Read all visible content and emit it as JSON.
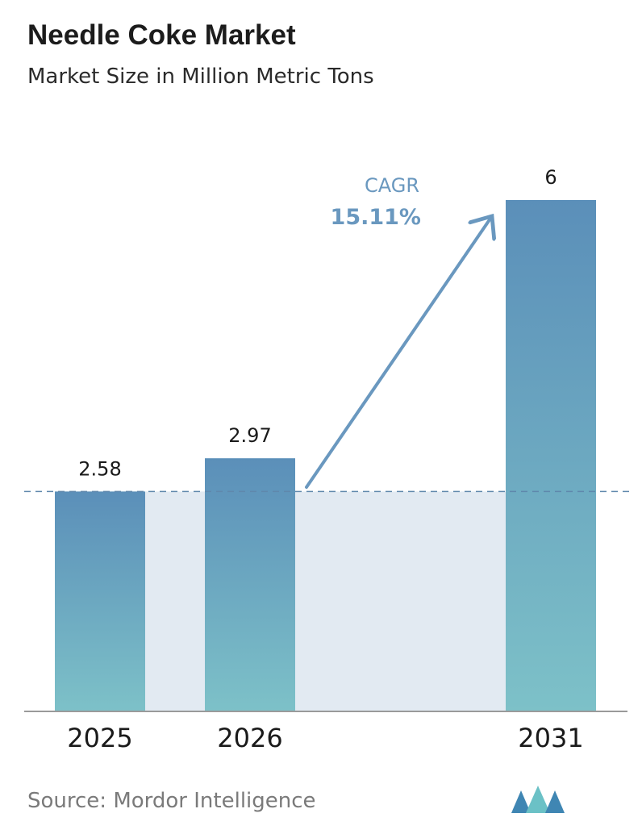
{
  "header": {
    "title": "Needle Coke Market",
    "subtitle": "Market Size in Million Metric Tons"
  },
  "footer": {
    "source": "Source:  Mordor Intelligence"
  },
  "logo": {
    "icon": "mordor-intelligence-logo-icon",
    "color_a": "#3f86b3",
    "color_b": "#6bc1c6"
  },
  "cagr": {
    "label": "CAGR",
    "value": "15.11%"
  },
  "colors": {
    "bar_top": "#5b8fb9",
    "bar_bottom": "#7dc1c8",
    "band": "#e2eaf2",
    "dashed_line": "#5f88ac",
    "arrow": "#6a98bf",
    "cagr_text": "#6a98bf",
    "axis": "#9a9a9a"
  },
  "chart_data": {
    "type": "bar",
    "categories": [
      "2025",
      "2026",
      "2031"
    ],
    "values": [
      2.58,
      2.97,
      6
    ],
    "value_labels": [
      "2.58",
      "2.97",
      "6"
    ],
    "ylim": [
      0,
      6
    ],
    "grid": false,
    "reference_line": 2.58,
    "xlabel": "",
    "ylabel": ""
  }
}
